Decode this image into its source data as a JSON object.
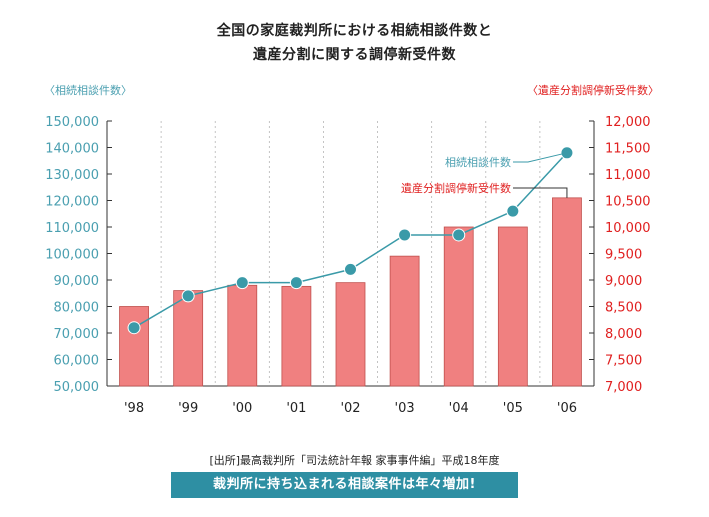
{
  "title_line1": "全国の家庭裁判所における相続相談件数と",
  "title_line2": "遺産分割に関する調停新受件数",
  "source_note": "[出所]最高裁判所「司法統計年報 家事事件編」平成18年度",
  "banner_text": "裁判所に持ち込まれる相談案件は年々増加!",
  "colors": {
    "bar_fill": "#f08080",
    "bar_stroke": "#c0504d",
    "line": "#3a9aa8",
    "left_axis": "#4a9fb0",
    "right_axis": "#e02020",
    "banner": "#2e8fa3"
  },
  "chart_data": {
    "type": "bar+line",
    "categories": [
      "'98",
      "'99",
      "'00",
      "'01",
      "'02",
      "'03",
      "'04",
      "'05",
      "'06"
    ],
    "left_axis": {
      "label": "〈相続相談件数〉",
      "range": [
        50000,
        150000
      ],
      "ticks": [
        "50,000",
        "60,000",
        "70,000",
        "80,000",
        "90,000",
        "100,000",
        "110,000",
        "120,000",
        "130,000",
        "140,000",
        "150,000"
      ]
    },
    "right_axis": {
      "label": "〈遺産分割調停新受件数〉",
      "range": [
        7000,
        12000
      ],
      "ticks": [
        "7,000",
        "7,500",
        "8,000",
        "8,500",
        "9,000",
        "9,500",
        "10,000",
        "10,500",
        "11,000",
        "11,500",
        "12,000"
      ]
    },
    "series": [
      {
        "name": "遺産分割調停新受件数",
        "kind": "bar",
        "axis": "right",
        "values": [
          8500,
          8800,
          8900,
          8880,
          8950,
          9450,
          10000,
          10000,
          10550
        ]
      },
      {
        "name": "相続相談件数",
        "kind": "line",
        "axis": "left",
        "values": [
          72000,
          84000,
          89000,
          89000,
          94000,
          107000,
          107000,
          116000,
          138000
        ]
      }
    ],
    "grid": "vertical-dashed"
  }
}
